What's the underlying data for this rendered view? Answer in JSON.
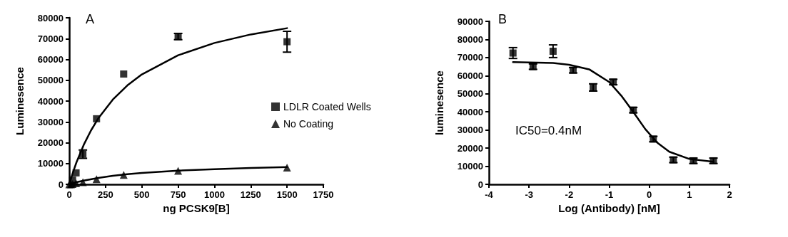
{
  "chart_data": [
    {
      "type": "scatter",
      "xlabel": "ng PCSK9[B]",
      "ylabel": "Luminesence",
      "annotations": [
        "A"
      ],
      "xlim": [
        0,
        1750
      ],
      "xticks": [
        0,
        250,
        500,
        750,
        1000,
        1250,
        1500,
        1750
      ],
      "ylim": [
        0,
        80000
      ],
      "yticks": [
        0,
        10000,
        20000,
        30000,
        40000,
        50000,
        60000,
        70000,
        80000
      ],
      "grid": false,
      "legend": "right",
      "series": [
        {
          "name": "LDLR Coated Wells",
          "color": "#000000",
          "marker": "square",
          "x": [
            23,
            47,
            94,
            188,
            375,
            750,
            1500
          ],
          "values": [
            2000,
            5500,
            14500,
            31500,
            53000,
            71000,
            68500
          ],
          "errors": [
            null,
            null,
            2000,
            null,
            null,
            1500,
            5000
          ]
        },
        {
          "name": "No Coating",
          "color": "#000000",
          "marker": "triangle",
          "x": [
            0,
            12,
            23,
            47,
            94,
            188,
            375,
            750,
            1500
          ],
          "values": [
            0,
            0,
            200,
            500,
            1000,
            2500,
            4500,
            6500,
            8000
          ]
        },
        {
          "type": "line",
          "color": "#000000",
          "marker": "none",
          "x": [
            0,
            25,
            50,
            100,
            150,
            200,
            300,
            400,
            500,
            750,
            1000,
            1250,
            1500
          ],
          "values": [
            0,
            5600,
            10600,
            19000,
            25900,
            31700,
            40700,
            47500,
            52800,
            62000,
            67900,
            72000,
            75000
          ]
        },
        {
          "type": "line",
          "color": "#000000",
          "marker": "none",
          "x": [
            0,
            25,
            50,
            100,
            200,
            300,
            400,
            500,
            750,
            1000,
            1250,
            1500
          ],
          "values": [
            0,
            500,
            1000,
            1800,
            3100,
            4100,
            4900,
            5500,
            6600,
            7300,
            7900,
            8300
          ]
        }
      ]
    },
    {
      "type": "scatter",
      "xlabel": "Log (Antibody) [nM]",
      "ylabel": "luminesence",
      "annotations": [
        "B",
        "IC50=0.4nM"
      ],
      "xlim": [
        -4,
        2
      ],
      "xticks": [
        -4,
        -3,
        -2,
        -1,
        0,
        1,
        2
      ],
      "ylim": [
        0,
        90000
      ],
      "yticks": [
        0,
        10000,
        20000,
        30000,
        40000,
        50000,
        60000,
        70000,
        80000,
        90000
      ],
      "grid": false,
      "series": [
        {
          "color": "#000000",
          "marker": "square",
          "x": [
            -3.4,
            -2.9,
            -2.4,
            -1.9,
            -1.4,
            -0.9,
            -0.4,
            0.1,
            0.6,
            1.1,
            1.6
          ],
          "values": [
            72500,
            65000,
            73500,
            63000,
            53500,
            56500,
            41000,
            25000,
            13500,
            13000,
            13000
          ],
          "errors": [
            3000,
            1500,
            3500,
            1500,
            2000,
            1500,
            1500,
            1500,
            1500,
            1500,
            1500
          ]
        },
        {
          "type": "line",
          "color": "#000000",
          "marker": "none",
          "x": [
            -3.4,
            -2.4,
            -2,
            -1.5,
            -1,
            -0.7,
            -0.4,
            -0.1,
            0.2,
            0.5,
            1,
            1.6
          ],
          "values": [
            67500,
            67000,
            66000,
            63500,
            56500,
            49000,
            40000,
            30500,
            23000,
            18000,
            14000,
            12500
          ]
        }
      ]
    }
  ]
}
